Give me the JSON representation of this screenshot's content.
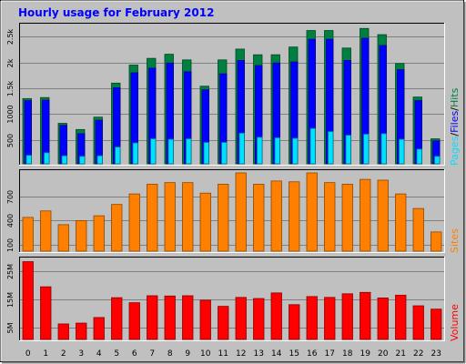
{
  "colors": {
    "background": "#c0c0c0",
    "plot_background": "#c0c0c0",
    "title": "#0000ff",
    "hits": "#008040",
    "files": "#0000ff",
    "pages": "#00e0ff",
    "sites": "#ff8000",
    "volume": "#ff0000",
    "grid": "#808080",
    "tick_text": "#000000"
  },
  "chart_data": [
    {
      "type": "bar",
      "title": "Hourly usage for February 2012",
      "categories": [
        "0",
        "1",
        "2",
        "3",
        "4",
        "5",
        "6",
        "7",
        "8",
        "9",
        "10",
        "11",
        "12",
        "13",
        "14",
        "15",
        "16",
        "17",
        "18",
        "19",
        "20",
        "21",
        "22",
        "23"
      ],
      "ylim": [
        0,
        2700
      ],
      "yticks": [
        {
          "value": 500,
          "label": "500"
        },
        {
          "value": 1000,
          "label": "1000"
        },
        {
          "value": 1500,
          "label": "1.5k"
        },
        {
          "value": 2000,
          "label": "2k"
        },
        {
          "value": 2500,
          "label": "2.5k"
        }
      ],
      "right_label": [
        "Pages",
        "/",
        "Files",
        "/",
        "Hits"
      ],
      "series": [
        {
          "name": "Hits",
          "color": "#008040",
          "values": [
            1300,
            1320,
            820,
            700,
            940,
            1600,
            1950,
            2080,
            2160,
            2050,
            1540,
            2050,
            2260,
            2150,
            2150,
            2300,
            2620,
            2620,
            2280,
            2660,
            2540,
            1980,
            1330,
            520
          ]
        },
        {
          "name": "Files",
          "color": "#0000ff",
          "values": [
            1260,
            1270,
            780,
            620,
            880,
            1510,
            1800,
            1890,
            1990,
            1820,
            1470,
            1780,
            2040,
            1940,
            1990,
            2010,
            2450,
            2450,
            2040,
            2470,
            2330,
            1860,
            1260,
            480
          ]
        },
        {
          "name": "Pages",
          "color": "#00e0ff",
          "values": [
            200,
            250,
            190,
            180,
            190,
            360,
            440,
            520,
            510,
            520,
            450,
            450,
            630,
            550,
            540,
            530,
            720,
            660,
            590,
            610,
            620,
            510,
            320,
            180
          ]
        }
      ]
    },
    {
      "type": "bar",
      "categories": [
        "0",
        "1",
        "2",
        "3",
        "4",
        "5",
        "6",
        "7",
        "8",
        "9",
        "10",
        "11",
        "12",
        "13",
        "14",
        "15",
        "16",
        "17",
        "18",
        "19",
        "20",
        "21",
        "22",
        "23"
      ],
      "ylim": [
        0,
        990
      ],
      "yticks": [
        {
          "value": 100,
          "label": "100"
        },
        {
          "value": 400,
          "label": "400"
        },
        {
          "value": 700,
          "label": "700"
        }
      ],
      "right_label": [
        "Sites"
      ],
      "series": [
        {
          "name": "Sites",
          "color": "#ff8000",
          "values": [
            440,
            520,
            350,
            400,
            460,
            600,
            730,
            850,
            870,
            870,
            740,
            850,
            990,
            850,
            890,
            880,
            990,
            870,
            850,
            910,
            900,
            730,
            550,
            260
          ]
        }
      ]
    },
    {
      "type": "bar",
      "categories": [
        "0",
        "1",
        "2",
        "3",
        "4",
        "5",
        "6",
        "7",
        "8",
        "9",
        "10",
        "11",
        "12",
        "13",
        "14",
        "15",
        "16",
        "17",
        "18",
        "19",
        "20",
        "21",
        "22",
        "23"
      ],
      "ylim": [
        0,
        29
      ],
      "yticks": [
        {
          "value": 5,
          "label": "5M"
        },
        {
          "value": 15,
          "label": "15M"
        },
        {
          "value": 25,
          "label": "25M"
        }
      ],
      "right_label": [
        "Volume"
      ],
      "series": [
        {
          "name": "Volume",
          "color": "#ff0000",
          "values": [
            28.5,
            19.5,
            6.2,
            6.5,
            8.5,
            15.6,
            13.8,
            16.3,
            16.2,
            16.3,
            14.7,
            12.5,
            15.7,
            15.3,
            17.3,
            13.1,
            16.0,
            15.7,
            17.0,
            17.5,
            15.5,
            16.5,
            12.7,
            11.5
          ]
        }
      ]
    }
  ]
}
